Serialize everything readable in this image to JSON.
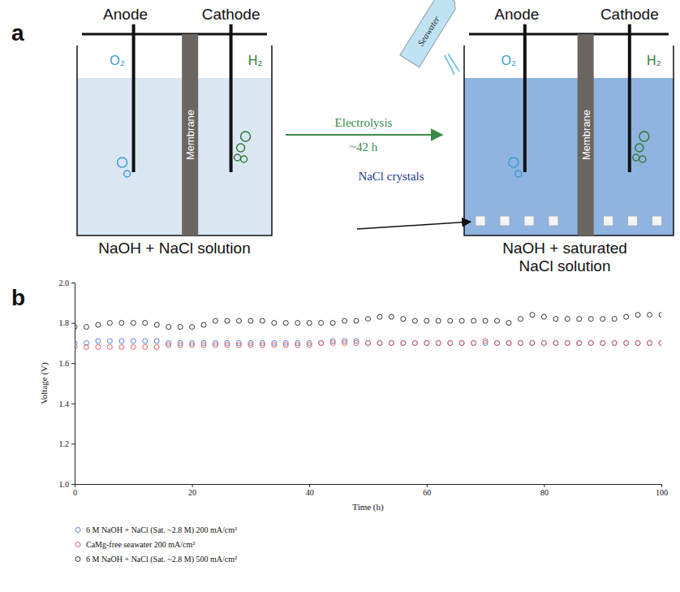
{
  "panel_labels": [
    "a",
    "b"
  ],
  "diagram": {
    "left_cell": {
      "anode": "Anode",
      "cathode": "Cathode",
      "anode_gas": "O₂",
      "cathode_gas": "H₂",
      "membrane": "Membrane",
      "caption": "NaOH + NaCl solution"
    },
    "process": {
      "label": "Electrolysis",
      "duration": "~42 h"
    },
    "right_cell": {
      "anode": "Anode",
      "cathode": "Cathode",
      "anode_gas": "O₂",
      "cathode_gas": "H₂",
      "membrane": "Membrane",
      "added": "Seawater",
      "crystals": "NaCl crystals",
      "caption": "NaOH + saturated NaCl solution"
    }
  },
  "chart_data": {
    "type": "scatter",
    "x_label": "Time (h)",
    "y_label": "Voltage (V)",
    "xlim": [
      0,
      100
    ],
    "xticks": [
      0,
      20,
      40,
      60,
      80,
      100
    ],
    "ylim": [
      1,
      2
    ],
    "yticks": [
      {
        "value": 1,
        "label": "1.0"
      },
      1.2,
      1.4,
      1.6,
      1.8,
      {
        "value": 2,
        "label": "2.0"
      }
    ],
    "legend": "bottom",
    "marker": "circle",
    "x": [
      0,
      2,
      4,
      6,
      8,
      10,
      12,
      14,
      16,
      18,
      20,
      22,
      24,
      26,
      28,
      30,
      32,
      34,
      36,
      38,
      40,
      42,
      44,
      46,
      48,
      50,
      52,
      54,
      56,
      58,
      60,
      62,
      64,
      66,
      68,
      70,
      72,
      74,
      76,
      78,
      80,
      82,
      84,
      86,
      88,
      90,
      92,
      94,
      96,
      98,
      100
    ],
    "series": [
      {
        "name": "6 M NaOH + NaCl (Sat. ~2.8 M) 200 mA/cm²",
        "color": "#5b7fd6",
        "values": [
          1.7,
          1.7,
          1.71,
          1.71,
          1.71,
          1.71,
          1.71,
          1.71,
          1.7,
          1.7,
          1.7,
          1.7,
          1.7,
          1.7,
          1.7,
          1.7,
          1.7,
          1.7,
          1.7,
          1.7,
          1.7,
          1.7,
          1.71,
          1.71,
          1.71,
          1.7,
          1.7,
          1.7,
          1.7,
          1.7,
          1.7,
          1.7,
          1.7,
          1.7,
          1.7,
          1.7,
          1.7,
          1.7,
          1.7,
          1.7,
          1.7,
          1.7,
          1.7,
          1.7,
          1.7,
          1.7,
          1.7,
          1.7,
          1.7,
          1.7,
          1.7
        ]
      },
      {
        "name": "CaMg-free seawater 200 mA/cm²",
        "color": "#e0605e",
        "values": [
          1.68,
          1.68,
          1.68,
          1.68,
          1.68,
          1.68,
          1.68,
          1.68,
          1.69,
          1.69,
          1.69,
          1.69,
          1.69,
          1.69,
          1.69,
          1.69,
          1.69,
          1.69,
          1.69,
          1.69,
          1.69,
          1.7,
          1.7,
          1.7,
          1.7,
          1.7,
          1.7,
          1.7,
          1.7,
          1.7,
          1.7,
          1.7,
          1.7,
          1.7,
          1.7,
          1.71,
          1.7,
          1.7,
          1.7,
          1.7,
          1.7,
          1.7,
          1.7,
          1.7,
          1.7,
          1.7,
          1.7,
          1.7,
          1.7,
          1.7,
          1.7
        ]
      },
      {
        "name": "6 M NaOH + NaCl (Sat. ~2.8 M) 500 mA/cm²",
        "color": "#333333",
        "values": [
          1.78,
          1.78,
          1.79,
          1.8,
          1.8,
          1.8,
          1.8,
          1.79,
          1.78,
          1.78,
          1.78,
          1.79,
          1.81,
          1.81,
          1.81,
          1.81,
          1.81,
          1.8,
          1.8,
          1.8,
          1.8,
          1.8,
          1.8,
          1.81,
          1.81,
          1.82,
          1.83,
          1.83,
          1.82,
          1.81,
          1.81,
          1.81,
          1.81,
          1.81,
          1.81,
          1.81,
          1.81,
          1.8,
          1.82,
          1.84,
          1.83,
          1.82,
          1.82,
          1.82,
          1.82,
          1.82,
          1.82,
          1.83,
          1.84,
          1.84,
          1.84
        ]
      }
    ]
  }
}
